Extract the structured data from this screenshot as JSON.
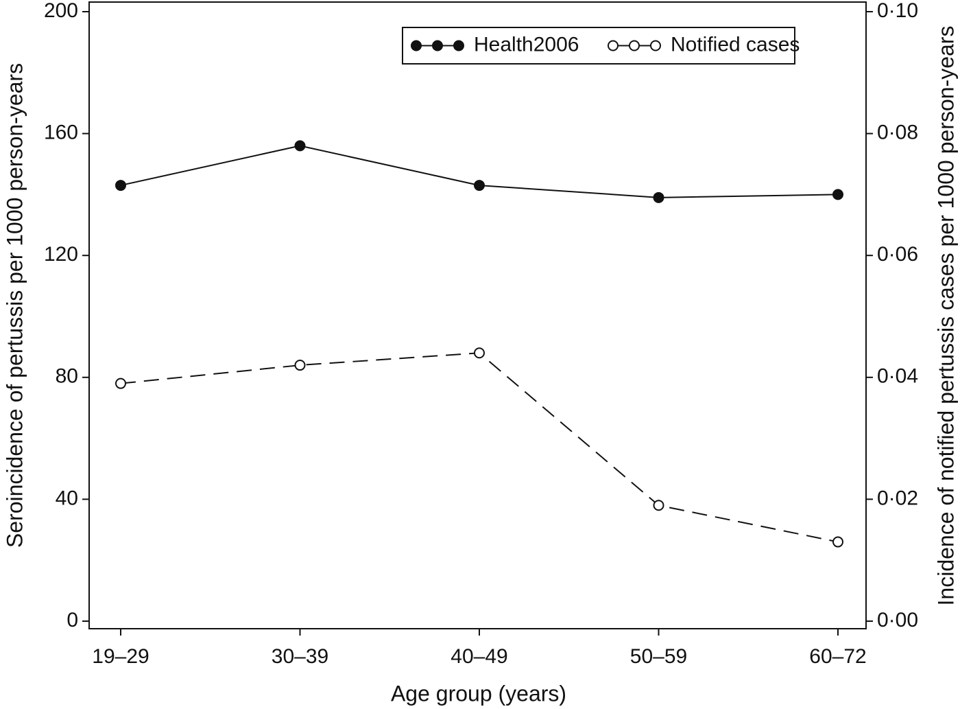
{
  "chart_data": {
    "type": "line",
    "x_label": "Age group (years)",
    "y_label": "Seroincidence of pertussis per 1000 person-years",
    "y2_label": "Incidence of notified pertussis cases per 1000 person-years",
    "categories": [
      "19–29",
      "30–39",
      "40–49",
      "50–59",
      "60–72"
    ],
    "series": [
      {
        "name": "Health2006",
        "color": "#111111",
        "marker": "filled",
        "line_style": "solid",
        "values": [
          143,
          156,
          143,
          139,
          140
        ]
      },
      {
        "name": "Notified cases",
        "color": "#111111",
        "marker": "open",
        "line_style": "dashed",
        "axis": "y2",
        "values": [
          0.039,
          0.042,
          0.044,
          0.019,
          0.013
        ]
      }
    ],
    "ylim": [
      0,
      200
    ],
    "yticks": [
      0,
      40,
      80,
      120,
      160,
      200
    ],
    "y2lim": [
      0,
      0.1
    ],
    "y2ticks": [
      {
        "value": 0,
        "label": "0·00"
      },
      {
        "value": 0.02,
        "label": "0·02"
      },
      {
        "value": 0.04,
        "label": "0·04"
      },
      {
        "value": 0.06,
        "label": "0·06"
      },
      {
        "value": 0.08,
        "label": "0·08"
      },
      {
        "value": 0.1,
        "label": "0·10"
      }
    ],
    "legend": "top-right"
  }
}
